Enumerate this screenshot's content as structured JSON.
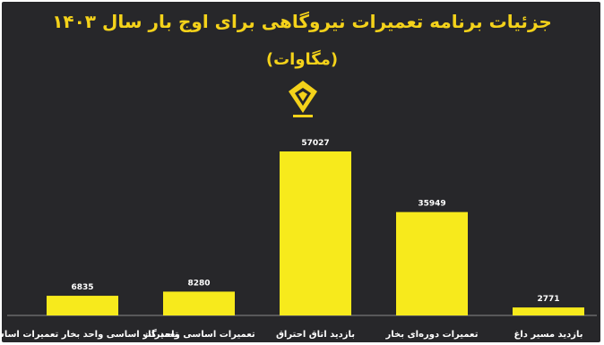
{
  "header": {
    "title": "جزئیات برنامه تعمیرات نیروگاهی برای اوج بار سال ۱۴۰۳",
    "subtitle": "(مگاوات)"
  },
  "logo": {
    "icon": "power-company-logo-icon",
    "accent_color": "#f4d21a"
  },
  "colors": {
    "background": "#27272a",
    "bar": "#f7ea1c",
    "text": "#ffffff",
    "title": "#f4d21a"
  },
  "chart_data": {
    "type": "bar",
    "title": "جزئیات برنامه تعمیرات نیروگاهی برای اوج بار سال ۱۴۰۳",
    "subtitle": "(مگاوات)",
    "categories": [
      "تعمیرات اساسی واحد بخار تعمیرات اساسی",
      "تعمیرات اساسی واحد گاز",
      "بازدید اتاق احتراق",
      "تعمیرات دوره‌ای بخار",
      "بازدید مسیر داغ"
    ],
    "values": [
      6835,
      8280,
      57027,
      35949,
      2771
    ],
    "value_labels": [
      "6835",
      "8280",
      "57027",
      "35949",
      "2771"
    ],
    "ylim": [
      0,
      57027
    ],
    "grid": false,
    "legend": "none"
  }
}
